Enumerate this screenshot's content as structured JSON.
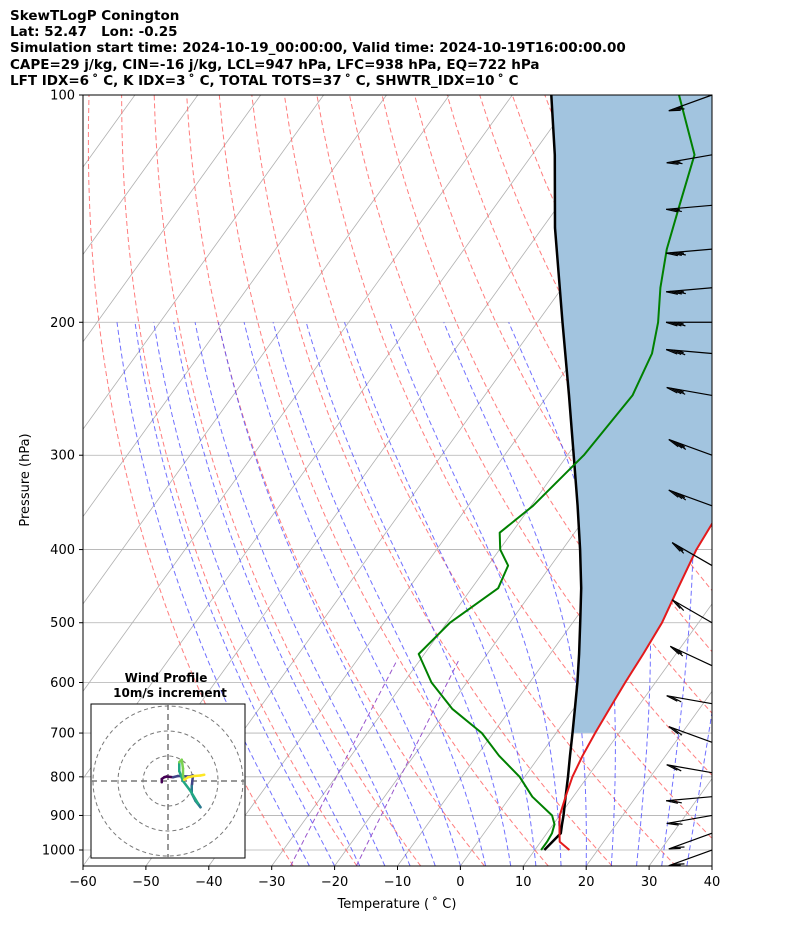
{
  "header": {
    "line1": "SkewTLogP Conington",
    "line2": "Lat: 52.47   Lon: -0.25",
    "line3": "Simulation start time: 2024-10-19_00:00:00, Valid time: 2024-10-19T16:00:00.00",
    "line4": "CAPE=29 j/kg, CIN=-16 j/kg, LCL=947 hPa, LFC=938 hPa, EQ=722 hPa",
    "line5": "LFT IDX=6$^\\circ$C, K IDX=3$^\\circ$C, TOTAL TOTS=37$^\\circ$C, SHWTR_IDX=10$^\\circ$C",
    "line5_display": "LFT IDX=6 ˚ C, K IDX=3 ˚ C, TOTAL TOTS=37 ˚ C, SHWTR_IDX=10 ˚ C"
  },
  "chart_data": {
    "type": "line",
    "subtype": "skew-t log-p",
    "xlabel": "Temperature ( ˚ C)",
    "ylabel": "Pressure (hPa)",
    "xlim": [
      -60,
      40
    ],
    "ylim": [
      1050,
      100
    ],
    "y_scale": "log",
    "x_ticks": [
      "−60",
      "−50",
      "−40",
      "−30",
      "−20",
      "−10",
      "0",
      "10",
      "20",
      "30",
      "40"
    ],
    "x_tick_values": [
      -60,
      -50,
      -40,
      -30,
      -20,
      -10,
      0,
      10,
      20,
      30,
      40
    ],
    "y_ticks": [
      "1000",
      "900",
      "800",
      "700",
      "600",
      "500",
      "400",
      "300",
      "200",
      "100"
    ],
    "y_tick_values": [
      1000,
      900,
      800,
      700,
      600,
      500,
      400,
      300,
      200,
      100
    ],
    "grid": true,
    "colors": {
      "temperature": "#e41a1c",
      "dewpoint": "#008000",
      "parcel": "#000000",
      "cape_fill": "#a2c4df",
      "dry_adiabat": "#ff6666",
      "moist_adiabat": "#4d4dff",
      "mixing_ratio": "#9955cc",
      "grid": "#b0b0b0"
    },
    "series": [
      {
        "key": "temperature",
        "points": [
          [
            1000,
            15.5
          ],
          [
            975,
            13
          ],
          [
            950,
            12
          ],
          [
            925,
            11
          ],
          [
            900,
            10
          ],
          [
            850,
            8.8
          ],
          [
            800,
            7.6
          ],
          [
            750,
            6.8
          ],
          [
            700,
            6.2
          ],
          [
            650,
            5.7
          ],
          [
            600,
            5.2
          ],
          [
            550,
            4.8
          ],
          [
            500,
            4.2
          ],
          [
            450,
            2.8
          ],
          [
            400,
            1.3
          ],
          [
            350,
            0.5
          ],
          [
            300,
            -1.8
          ],
          [
            250,
            -4.2
          ],
          [
            220,
            -5.2
          ],
          [
            200,
            -6.3
          ],
          [
            180,
            -7.6
          ],
          [
            160,
            -8.8
          ],
          [
            140,
            -10.8
          ],
          [
            120,
            -13.2
          ],
          [
            100,
            -17.4
          ]
        ]
      },
      {
        "key": "dewpoint",
        "points": [
          [
            1000,
            11
          ],
          [
            975,
            11
          ],
          [
            950,
            10.8
          ],
          [
            925,
            10.2
          ],
          [
            900,
            8.8
          ],
          [
            850,
            3.5
          ],
          [
            800,
            -0.8
          ],
          [
            750,
            -6.5
          ],
          [
            700,
            -11.8
          ],
          [
            650,
            -19.3
          ],
          [
            600,
            -25.6
          ],
          [
            550,
            -30.9
          ],
          [
            500,
            -29.5
          ],
          [
            450,
            -25.8
          ],
          [
            420,
            -26.8
          ],
          [
            400,
            -29.9
          ],
          [
            380,
            -31.9
          ],
          [
            350,
            -29.7
          ],
          [
            300,
            -27.4
          ],
          [
            250,
            -26.5
          ],
          [
            220,
            -28.2
          ],
          [
            200,
            -30.8
          ],
          [
            180,
            -34.4
          ],
          [
            160,
            -37.8
          ],
          [
            140,
            -40.8
          ],
          [
            120,
            -44.2
          ],
          [
            100,
            -53.5
          ]
        ]
      },
      {
        "key": "parcel",
        "points": [
          [
            1000,
            11.5
          ],
          [
            950,
            12.2
          ],
          [
            925,
            11.4
          ],
          [
            900,
            10.6
          ],
          [
            850,
            8.8
          ],
          [
            800,
            6.9
          ],
          [
            750,
            4.8
          ],
          [
            700,
            2.6
          ],
          [
            650,
            0.2
          ],
          [
            600,
            -2.4
          ],
          [
            550,
            -5.4
          ],
          [
            500,
            -8.8
          ],
          [
            450,
            -12.6
          ],
          [
            400,
            -17.2
          ],
          [
            350,
            -22.6
          ],
          [
            300,
            -29.0
          ],
          [
            250,
            -36.6
          ],
          [
            200,
            -46.0
          ],
          [
            150,
            -58.0
          ],
          [
            120,
            -66.4
          ],
          [
            100,
            -73.8
          ]
        ]
      }
    ],
    "wind_barbs": [
      {
        "p": 100,
        "speed": 25,
        "dir": 290
      },
      {
        "p": 120,
        "speed": 25,
        "dir": 280
      },
      {
        "p": 140,
        "speed": 25,
        "dir": 275
      },
      {
        "p": 160,
        "speed": 35,
        "dir": 275
      },
      {
        "p": 180,
        "speed": 35,
        "dir": 275
      },
      {
        "p": 200,
        "speed": 35,
        "dir": 270
      },
      {
        "p": 220,
        "speed": 35,
        "dir": 265
      },
      {
        "p": 250,
        "speed": 35,
        "dir": 260
      },
      {
        "p": 300,
        "speed": 35,
        "dir": 250
      },
      {
        "p": 350,
        "speed": 35,
        "dir": 250
      },
      {
        "p": 420,
        "speed": 25,
        "dir": 240
      },
      {
        "p": 500,
        "speed": 20,
        "dir": 240
      },
      {
        "p": 570,
        "speed": 25,
        "dir": 245
      },
      {
        "p": 640,
        "speed": 20,
        "dir": 260
      },
      {
        "p": 720,
        "speed": 20,
        "dir": 250
      },
      {
        "p": 790,
        "speed": 20,
        "dir": 260
      },
      {
        "p": 850,
        "speed": 20,
        "dir": 275
      },
      {
        "p": 900,
        "speed": 20,
        "dir": 280
      },
      {
        "p": 950,
        "speed": 20,
        "dir": 290
      },
      {
        "p": 1000,
        "speed": 20,
        "dir": 290
      }
    ],
    "inset": {
      "title": "Wind Profile",
      "subtitle": "10m/s increment",
      "rings": 3,
      "hodograph": [
        [
          -2.5,
          -0.5
        ],
        [
          -2.5,
          0.8
        ],
        [
          -1.5,
          1.5
        ],
        [
          -0.5,
          1.8
        ],
        [
          2.0,
          1.5
        ],
        [
          4.0,
          2.0
        ],
        [
          8.5,
          1.8
        ],
        [
          10.0,
          2.2
        ],
        [
          9.5,
          -2.0
        ],
        [
          9.5,
          -5.0
        ],
        [
          11.0,
          -8.0
        ],
        [
          13.0,
          -10.5
        ],
        [
          12.0,
          -9.0
        ],
        [
          9.0,
          -4.0
        ],
        [
          6.0,
          0.0
        ],
        [
          4.5,
          4.0
        ],
        [
          4.5,
          7.5
        ],
        [
          5.5,
          8.5
        ],
        [
          6.0,
          5.0
        ],
        [
          6.0,
          2.0
        ],
        [
          6.5,
          0.5
        ],
        [
          8.0,
          1.5
        ],
        [
          10.5,
          2.0
        ],
        [
          13.0,
          2.2
        ],
        [
          14.5,
          2.5
        ]
      ]
    }
  }
}
